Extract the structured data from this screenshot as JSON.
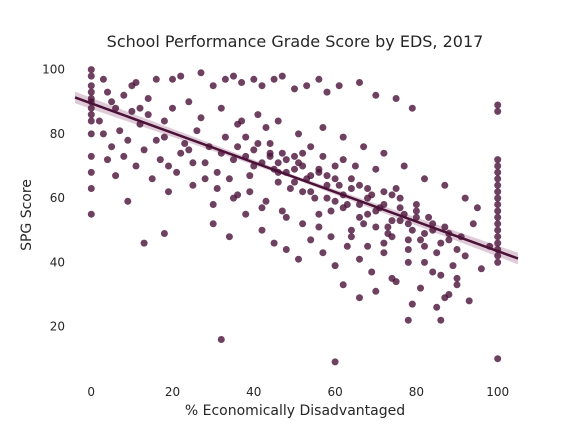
{
  "chart_data": {
    "type": "scatter",
    "title": "School Performance Grade Score by EDS, 2017",
    "xlabel": "% Economically Disadvantaged",
    "ylabel": "SPG Score",
    "xlim": [
      -4,
      105
    ],
    "ylim": [
      4,
      103
    ],
    "x_ticks": [
      0,
      20,
      40,
      60,
      80,
      100
    ],
    "y_ticks": [
      20,
      40,
      60,
      80,
      100
    ],
    "x_tick_labels": [
      "0",
      "20",
      "40",
      "60",
      "80",
      "100"
    ],
    "y_tick_labels": [
      "20",
      "40",
      "60",
      "80",
      "100"
    ],
    "grid": false,
    "point_color": "#4b1238",
    "line_color": "#4b1238",
    "band_color": "#c9a9bd",
    "regression": {
      "intercept": 89.5,
      "slope": -0.46,
      "x_range": [
        -4,
        105
      ]
    },
    "series": [
      {
        "values": [
          [
            0,
            100
          ],
          [
            0,
            98
          ],
          [
            0,
            95
          ],
          [
            0,
            93
          ],
          [
            0,
            91
          ],
          [
            0,
            90
          ],
          [
            0,
            88
          ],
          [
            0,
            86
          ],
          [
            0,
            84
          ],
          [
            0,
            80
          ],
          [
            0,
            73
          ],
          [
            0,
            68
          ],
          [
            0,
            63
          ],
          [
            0,
            55
          ],
          [
            3,
            97
          ],
          [
            4,
            93
          ],
          [
            5,
            90
          ],
          [
            6,
            88
          ],
          [
            8,
            92
          ],
          [
            10,
            95
          ],
          [
            11,
            96
          ],
          [
            12,
            88
          ],
          [
            14,
            86
          ],
          [
            16,
            97
          ],
          [
            18,
            84
          ],
          [
            20,
            97
          ],
          [
            22,
            98
          ],
          [
            24,
            90
          ],
          [
            27,
            99
          ],
          [
            30,
            95
          ],
          [
            33,
            97
          ],
          [
            35,
            98
          ],
          [
            37,
            96
          ],
          [
            40,
            97
          ],
          [
            42,
            95
          ],
          [
            45,
            97
          ],
          [
            47,
            98
          ],
          [
            50,
            94
          ],
          [
            53,
            95
          ],
          [
            56,
            97
          ],
          [
            58,
            93
          ],
          [
            61,
            95
          ],
          [
            66,
            96
          ],
          [
            70,
            92
          ],
          [
            75,
            91
          ],
          [
            79,
            88
          ],
          [
            3,
            80
          ],
          [
            5,
            76
          ],
          [
            8,
            73
          ],
          [
            9,
            78
          ],
          [
            11,
            70
          ],
          [
            13,
            75
          ],
          [
            15,
            66
          ],
          [
            17,
            72
          ],
          [
            19,
            62
          ],
          [
            21,
            68
          ],
          [
            23,
            77
          ],
          [
            25,
            64
          ],
          [
            28,
            71
          ],
          [
            30,
            58
          ],
          [
            32,
            74
          ],
          [
            34,
            66
          ],
          [
            36,
            61
          ],
          [
            38,
            79
          ],
          [
            40,
            70
          ],
          [
            42,
            57
          ],
          [
            44,
            73
          ],
          [
            46,
            65
          ],
          [
            48,
            54
          ],
          [
            50,
            69
          ],
          [
            52,
            62
          ],
          [
            54,
            76
          ],
          [
            56,
            51
          ],
          [
            58,
            67
          ],
          [
            60,
            59
          ],
          [
            62,
            72
          ],
          [
            64,
            48
          ],
          [
            66,
            64
          ],
          [
            68,
            55
          ],
          [
            70,
            69
          ],
          [
            72,
            46
          ],
          [
            74,
            61
          ],
          [
            76,
            53
          ],
          [
            78,
            44
          ],
          [
            80,
            58
          ],
          [
            82,
            40
          ],
          [
            84,
            50
          ],
          [
            86,
            36
          ],
          [
            88,
            47
          ],
          [
            90,
            33
          ],
          [
            92,
            42
          ],
          [
            94,
            52
          ],
          [
            96,
            38
          ],
          [
            98,
            45
          ],
          [
            12,
            83
          ],
          [
            18,
            79
          ],
          [
            24,
            75
          ],
          [
            26,
            81
          ],
          [
            29,
            76
          ],
          [
            31,
            68
          ],
          [
            33,
            79
          ],
          [
            35,
            72
          ],
          [
            37,
            84
          ],
          [
            39,
            67
          ],
          [
            41,
            77
          ],
          [
            43,
            82
          ],
          [
            45,
            69
          ],
          [
            47,
            74
          ],
          [
            49,
            63
          ],
          [
            51,
            71
          ],
          [
            53,
            66
          ],
          [
            55,
            60
          ],
          [
            57,
            73
          ],
          [
            59,
            56
          ],
          [
            61,
            64
          ],
          [
            63,
            58
          ],
          [
            65,
            70
          ],
          [
            67,
            52
          ],
          [
            69,
            61
          ],
          [
            71,
            57
          ],
          [
            73,
            49
          ],
          [
            75,
            63
          ],
          [
            77,
            55
          ],
          [
            79,
            50
          ],
          [
            81,
            47
          ],
          [
            83,
            54
          ],
          [
            85,
            43
          ],
          [
            87,
            51
          ],
          [
            89,
            39
          ],
          [
            91,
            48
          ],
          [
            20,
            88
          ],
          [
            22,
            74
          ],
          [
            27,
            85
          ],
          [
            32,
            88
          ],
          [
            36,
            83
          ],
          [
            41,
            86
          ],
          [
            46,
            84
          ],
          [
            51,
            80
          ],
          [
            57,
            82
          ],
          [
            62,
            79
          ],
          [
            67,
            76
          ],
          [
            72,
            74
          ],
          [
            77,
            70
          ],
          [
            82,
            66
          ],
          [
            87,
            64
          ],
          [
            92,
            60
          ],
          [
            95,
            57
          ],
          [
            30,
            52
          ],
          [
            34,
            48
          ],
          [
            38,
            55
          ],
          [
            42,
            50
          ],
          [
            45,
            46
          ],
          [
            48,
            44
          ],
          [
            51,
            41
          ],
          [
            54,
            47
          ],
          [
            57,
            43
          ],
          [
            60,
            39
          ],
          [
            63,
            45
          ],
          [
            66,
            41
          ],
          [
            69,
            37
          ],
          [
            72,
            43
          ],
          [
            75,
            34
          ],
          [
            78,
            40
          ],
          [
            81,
            32
          ],
          [
            84,
            37
          ],
          [
            87,
            29
          ],
          [
            90,
            35
          ],
          [
            93,
            28
          ],
          [
            62,
            33
          ],
          [
            66,
            29
          ],
          [
            70,
            31
          ],
          [
            74,
            35
          ],
          [
            79,
            27
          ],
          [
            85,
            26
          ],
          [
            88,
            30
          ],
          [
            78,
            22
          ],
          [
            86,
            22
          ],
          [
            18,
            49
          ],
          [
            13,
            46
          ],
          [
            9,
            59
          ],
          [
            6,
            67
          ],
          [
            2,
            84
          ],
          [
            4,
            72
          ],
          [
            7,
            81
          ],
          [
            10,
            87
          ],
          [
            14,
            91
          ],
          [
            16,
            78
          ],
          [
            19,
            70
          ],
          [
            25,
            71
          ],
          [
            28,
            66
          ],
          [
            31,
            63
          ],
          [
            35,
            60
          ],
          [
            39,
            62
          ],
          [
            43,
            59
          ],
          [
            47,
            56
          ],
          [
            52,
            52
          ],
          [
            56,
            55
          ],
          [
            59,
            48
          ],
          [
            64,
            50
          ],
          [
            68,
            45
          ],
          [
            73,
            51
          ],
          [
            44,
            74
          ],
          [
            46,
            71
          ],
          [
            48,
            68
          ],
          [
            50,
            73
          ],
          [
            52,
            70
          ],
          [
            54,
            67
          ],
          [
            56,
            69
          ],
          [
            58,
            64
          ],
          [
            60,
            66
          ],
          [
            62,
            61
          ],
          [
            64,
            63
          ],
          [
            66,
            58
          ],
          [
            68,
            60
          ],
          [
            70,
            56
          ],
          [
            72,
            58
          ],
          [
            74,
            53
          ],
          [
            76,
            57
          ],
          [
            78,
            52
          ],
          [
            80,
            54
          ],
          [
            82,
            49
          ],
          [
            84,
            52
          ],
          [
            86,
            46
          ],
          [
            88,
            49
          ],
          [
            90,
            44
          ],
          [
            36,
            76
          ],
          [
            38,
            73
          ],
          [
            40,
            75
          ],
          [
            42,
            71
          ],
          [
            44,
            77
          ],
          [
            46,
            68
          ],
          [
            48,
            72
          ],
          [
            50,
            65
          ],
          [
            52,
            74
          ],
          [
            54,
            62
          ],
          [
            56,
            68
          ],
          [
            58,
            60
          ],
          [
            60,
            70
          ],
          [
            62,
            57
          ],
          [
            64,
            66
          ],
          [
            66,
            54
          ],
          [
            68,
            63
          ],
          [
            70,
            51
          ],
          [
            72,
            62
          ],
          [
            74,
            48
          ],
          [
            76,
            60
          ],
          [
            78,
            47
          ],
          [
            80,
            56
          ],
          [
            82,
            45
          ],
          [
            100,
            89
          ],
          [
            100,
            87
          ],
          [
            100,
            72
          ],
          [
            100,
            70
          ],
          [
            100,
            68
          ],
          [
            100,
            66
          ],
          [
            100,
            64
          ],
          [
            100,
            62
          ],
          [
            100,
            60
          ],
          [
            100,
            58
          ],
          [
            100,
            56
          ],
          [
            100,
            54
          ],
          [
            100,
            52
          ],
          [
            100,
            50
          ],
          [
            100,
            48
          ],
          [
            100,
            46
          ],
          [
            100,
            44
          ],
          [
            100,
            42
          ],
          [
            100,
            40
          ],
          [
            100,
            10
          ],
          [
            32,
            16
          ],
          [
            60,
            9
          ]
        ]
      }
    ]
  }
}
